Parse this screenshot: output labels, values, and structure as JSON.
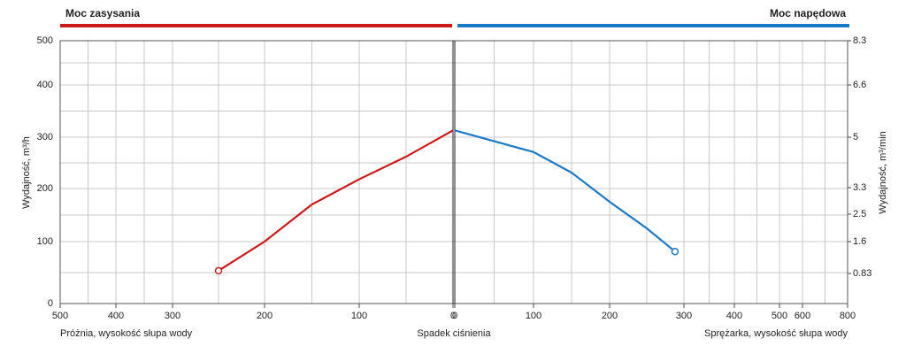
{
  "chart_data": [
    {
      "type": "line",
      "title": "Moc zasysania",
      "color": "#cc1a1a",
      "ylabel": "Wydajność, m³/h",
      "xlabel": "Próżnia, wysokość słupa wody",
      "annotation": "Spadek ciśnienia",
      "xlim": [
        500,
        0
      ],
      "xticks": [
        500,
        400,
        300,
        200,
        100,
        0
      ],
      "minor_xticks": [
        450,
        350,
        250,
        150,
        50
      ],
      "ylim": [
        0,
        500
      ],
      "yticks": [
        0,
        100,
        200,
        300,
        400,
        500
      ],
      "minor_yticks": [
        50,
        150,
        250,
        350,
        450
      ],
      "x": [
        250,
        200,
        150,
        100,
        50,
        0
      ],
      "values": [
        53,
        100,
        170,
        218,
        262,
        313
      ],
      "grid": true
    },
    {
      "type": "line",
      "title": "Moc napędowa",
      "color": "#1a7ac8",
      "y2label": "Wydajność, m³/min",
      "xlabel": "Sprężarka, wysokość słupa wody",
      "xlim": [
        0,
        800
      ],
      "xticks": [
        0,
        100,
        200,
        300,
        400,
        500,
        600,
        800
      ],
      "minor_xticks": [
        50,
        150,
        250,
        350,
        450,
        700
      ],
      "y2lim": [
        0,
        8.3
      ],
      "y2ticks": [
        0.83,
        1.6,
        2.5,
        3.3,
        5,
        6.6,
        8.3
      ],
      "x": [
        0,
        100,
        150,
        200,
        250,
        288
      ],
      "values": [
        313,
        271,
        231,
        175,
        125,
        84
      ],
      "grid": true
    }
  ]
}
